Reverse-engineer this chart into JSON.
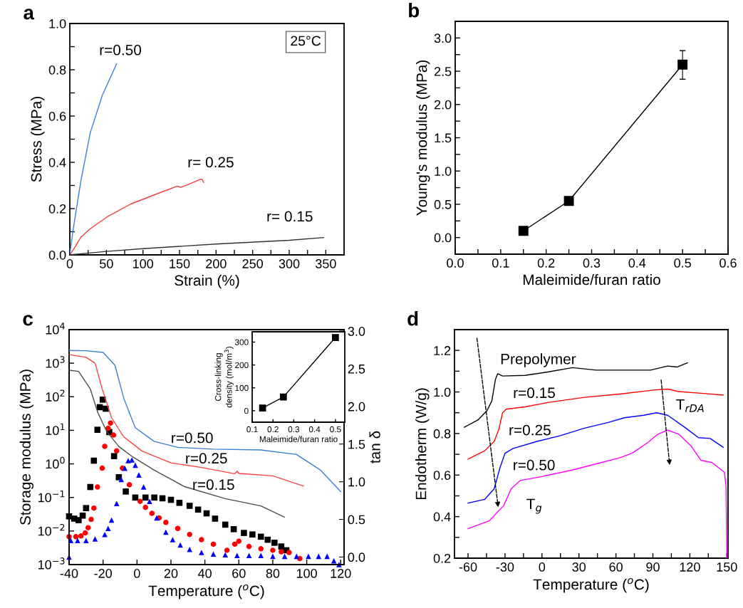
{
  "chart_data": [
    {
      "type": "line",
      "title": "a",
      "xlabel": "Strain (%)",
      "ylabel": "Stress (MPa)",
      "xlim": [
        0,
        375
      ],
      "ylim": [
        0,
        1.0
      ],
      "xticks": [
        0,
        {
          "value": 25,
          "label": null
        },
        50,
        {
          "value": 75,
          "label": null
        },
        100,
        {
          "value": 125,
          "label": null
        },
        150,
        {
          "value": 175,
          "label": null
        },
        200,
        {
          "value": 225,
          "label": null
        },
        250,
        {
          "value": 275,
          "label": null
        },
        300,
        {
          "value": 325,
          "label": null
        },
        350
      ],
      "yticks": [
        {
          "value": 0,
          "label": "0.0"
        },
        {
          "value": 0.1,
          "label": null
        },
        0.2,
        {
          "value": 0.3,
          "label": null
        },
        0.4,
        {
          "value": 0.5,
          "label": null
        },
        0.6,
        {
          "value": 0.7,
          "label": null
        },
        0.8,
        {
          "value": 0.9,
          "label": null
        },
        {
          "value": 1.0,
          "label": "1.0"
        }
      ],
      "series": [
        {
          "color": "#3b82e0",
          "x": [
            0,
            2,
            5.5,
            15.3,
            28,
            44.5,
            64
          ],
          "values": [
            0,
            0.05,
            0.128,
            0.323,
            0.528,
            0.69,
            0.826
          ]
        },
        {
          "color": "#f03c3c",
          "x": [
            0,
            5.5,
            15.3,
            28,
            51,
            83.5,
            116,
            147,
            152,
            165,
            178,
            181,
            183
          ],
          "values": [
            0,
            0.026,
            0.077,
            0.113,
            0.164,
            0.22,
            0.26,
            0.297,
            0.292,
            0.308,
            0.326,
            0.326,
            0.313
          ]
        },
        {
          "color": "#333333",
          "x": [
            0,
            50,
            100,
            200,
            300,
            347
          ],
          "values": [
            0,
            0.015,
            0.027,
            0.047,
            0.063,
            0.075
          ]
        }
      ],
      "annotations": [
        "25°C",
        "r=0.50",
        "r= 0.25",
        "r= 0.15"
      ]
    },
    {
      "type": "line",
      "title": "b",
      "xlabel": "Maleimide/furan ratio",
      "ylabel": "Young's modulus (MPa)",
      "xlim": [
        0,
        0.6
      ],
      "ylim": [
        -0.25,
        3.25
      ],
      "marker": "square",
      "xticks": [
        {
          "value": 0,
          "label": "0.0"
        },
        {
          "value": 0.05,
          "label": null
        },
        0.1,
        {
          "value": 0.15,
          "label": null
        },
        0.2,
        {
          "value": 0.25,
          "label": null
        },
        0.3,
        {
          "value": 0.35,
          "label": null
        },
        0.4,
        {
          "value": 0.45,
          "label": null
        },
        0.5,
        {
          "value": 0.55,
          "label": null
        },
        0.6
      ],
      "yticks": [
        {
          "value": 0,
          "label": "0.0"
        },
        {
          "value": 0.25,
          "label": null
        },
        0.5,
        {
          "value": 0.75,
          "label": null
        },
        {
          "value": 1.0,
          "label": "1.0"
        },
        {
          "value": 1.25,
          "label": null
        },
        1.5,
        {
          "value": 1.75,
          "label": null
        },
        {
          "value": 2.0,
          "label": "2.0"
        },
        {
          "value": 2.25,
          "label": null
        },
        2.5,
        {
          "value": 2.75,
          "label": null
        },
        {
          "value": 3.0,
          "label": "3.0"
        }
      ],
      "series": [
        {
          "color": "#000000",
          "x": [
            0.15,
            0.25,
            0.5
          ],
          "values": [
            0.1,
            0.55,
            2.6
          ],
          "errors": [
            null,
            null,
            [
              2.38,
              2.81
            ]
          ]
        }
      ]
    },
    {
      "type": "line",
      "title": "c",
      "xlabel": "Temperature ($^{o}$C)",
      "ylabel": "Storage modulus (MPa)",
      "y2label": "tan δ",
      "log": "y",
      "xlim": [
        -40,
        122
      ],
      "ylim": [
        0.001,
        10000
      ],
      "y2lim": [
        -0.1,
        3.02
      ],
      "xticks": [
        -40,
        -20,
        0,
        20,
        40,
        60,
        80,
        100,
        120
      ],
      "yticks": [
        {
          "value": 0.001,
          "label": "10$^{−3}$"
        },
        {
          "value": 0.01,
          "label": "10$^{−2}$"
        },
        {
          "value": 0.1,
          "label": "10$^{−1}$"
        },
        {
          "value": 1,
          "label": "10$^{0}$"
        },
        {
          "value": 10,
          "label": "10$^{1}$"
        },
        {
          "value": 100,
          "label": "10$^{2}$"
        },
        {
          "value": 1000,
          "label": "10$^{3}$"
        },
        {
          "value": 10000,
          "label": "10$^{4}$"
        }
      ],
      "y2ticks": [
        {
          "value": 0,
          "label": "0.0"
        },
        0.5,
        {
          "value": 1.0,
          "label": "1.0"
        },
        1.5,
        {
          "value": 2.0,
          "label": "2.0"
        },
        2.5,
        {
          "value": 3.0,
          "label": "3.0"
        }
      ],
      "series": [
        {
          "color": "#3a7fd5",
          "x": [
            -40,
            -30,
            -20,
            -13,
            -7.7,
            -1,
            10,
            24,
            45,
            73,
            94,
            108,
            120
          ],
          "values": [
            2400,
            2350,
            2100,
            870,
            87,
            12,
            4.7,
            3.1,
            2.75,
            2.6,
            1.9,
            0.66,
            0.15
          ]
        },
        {
          "color": "#ff4040",
          "x": [
            -40,
            -30,
            -24.7,
            -20.5,
            -15,
            -8,
            3,
            20,
            38,
            57.5,
            59,
            60,
            80,
            98
          ],
          "values": [
            1800,
            1500,
            1000,
            170,
            24,
            6.5,
            2.4,
            1.07,
            0.78,
            0.51,
            0.6,
            0.52,
            0.44,
            0.22
          ]
        },
        {
          "color": "#4d4d4d",
          "x": [
            -40,
            -34.4,
            -27.5,
            -23,
            -17.7,
            -10.7,
            -2.4,
            10,
            28,
            52,
            73,
            86.8
          ],
          "values": [
            620,
            570,
            170,
            33,
            9,
            3.3,
            1.6,
            0.66,
            0.21,
            0.092,
            0.056,
            0.026
          ]
        },
        {
          "type": "scatter",
          "axis": "y2",
          "marker": "square",
          "color": "#000000",
          "x": [
            -40,
            -37,
            -34.4,
            -32,
            -30,
            -27.5,
            -25.4,
            -23.3,
            -21.9,
            -20.2,
            -18.4,
            -16.3,
            -13.5,
            -10.7,
            -6.6,
            -1,
            5,
            10.2,
            15,
            20,
            25,
            31,
            36,
            41,
            46,
            52,
            57,
            63,
            68,
            73,
            77,
            81,
            85,
            88
          ],
          "values": [
            0.54,
            0.51,
            0.49,
            0.55,
            0.65,
            0.93,
            1.28,
            1.69,
            1.99,
            2.09,
            1.97,
            1.66,
            1.34,
            1.06,
            0.87,
            0.79,
            0.79,
            0.79,
            0.78,
            0.76,
            0.72,
            0.68,
            0.63,
            0.58,
            0.51,
            0.43,
            0.37,
            0.32,
            0.3,
            0.27,
            0.23,
            0.19,
            0.14,
            0.09
          ]
        },
        {
          "type": "scatter",
          "axis": "y2",
          "marker": "circle",
          "color": "#ff0000",
          "x": [
            -40,
            -36,
            -33,
            -30.5,
            -28.8,
            -27,
            -25.4,
            -23.3,
            -20.5,
            -19,
            -17,
            -15.6,
            -13.8,
            -12,
            -8.6,
            -4.5,
            1.8,
            5,
            8.8,
            13,
            17,
            24,
            31,
            38,
            45,
            53,
            57.6,
            60,
            66,
            73,
            80,
            85,
            89.6,
            95.9
          ],
          "values": [
            0.27,
            0.27,
            0.28,
            0.32,
            0.39,
            0.5,
            0.65,
            0.93,
            1.18,
            1.47,
            1.71,
            1.78,
            1.62,
            1.41,
            1.18,
            0.96,
            0.74,
            0.66,
            0.58,
            0.52,
            0.46,
            0.38,
            0.3,
            0.23,
            0.17,
            0.09,
            0.17,
            0.21,
            0.14,
            0.11,
            0.09,
            0.07,
            0.06,
            -0.02
          ]
        },
        {
          "type": "scatter",
          "axis": "y2",
          "marker": "triangle",
          "color": "#0000ff",
          "x": [
            -40,
            -39,
            -35,
            -30,
            -24.7,
            -19,
            -17,
            -15,
            -12,
            -9.3,
            -7.2,
            -5.2,
            -3,
            -1,
            1.1,
            3.9,
            7.4,
            11.6,
            17,
            21,
            25.5,
            31,
            38,
            45,
            52,
            59,
            66,
            73,
            80,
            87,
            94,
            101,
            107,
            112,
            116,
            119
          ],
          "values": [
            0.0,
            0.22,
            0.22,
            0.22,
            0.24,
            0.3,
            0.38,
            0.49,
            0.71,
            1.03,
            1.18,
            1.28,
            1.29,
            1.22,
            1.09,
            0.93,
            0.74,
            0.52,
            0.33,
            0.23,
            0.16,
            0.1,
            0.06,
            0.04,
            0.03,
            0.02,
            0.02,
            0.02,
            0.01,
            0.01,
            0.01,
            0.01,
            0.01,
            0.01,
            -0.05,
            -0.1
          ]
        }
      ],
      "annotations": [
        "r=0.50",
        "r=0.25",
        "r=0.15"
      ]
    },
    {
      "type": "line",
      "xlabel": "Maleimide/furan ratio",
      "ylabel": "Cross-linking\ndensity (mol/m$^{3}$)",
      "marker": "square",
      "xlim": [
        0.1,
        0.545
      ],
      "ylim": [
        -50,
        345
      ],
      "xticks": [
        0.1,
        0.2,
        0.3,
        0.4,
        0.5
      ],
      "yticks": [
        0,
        100,
        200,
        300
      ],
      "series": [
        {
          "color": "#000000",
          "x": [
            0.15,
            0.25,
            0.5
          ],
          "values": [
            12,
            60,
            320
          ]
        }
      ]
    },
    {
      "type": "line",
      "title": "d",
      "xlabel": "Temperature ($^{o}$C)",
      "ylabel": "Endotherm (W/g)",
      "xlim": [
        -71,
        151
      ],
      "ylim": [
        0.2,
        1.3
      ],
      "xticks": [
        -60,
        {
          "value": -45,
          "label": null
        },
        -30,
        {
          "value": -15,
          "label": null
        },
        0,
        {
          "value": 15,
          "label": null
        },
        30,
        {
          "value": 45,
          "label": null
        },
        60,
        {
          "value": 75,
          "label": null
        },
        90,
        {
          "value": 105,
          "label": null
        },
        120,
        {
          "value": 135,
          "label": null
        },
        150
      ],
      "yticks": [
        0.2,
        {
          "value": 0.3,
          "label": null
        },
        0.4,
        {
          "value": 0.5,
          "label": null
        },
        0.6,
        {
          "value": 0.7,
          "label": null
        },
        0.8,
        {
          "value": 0.9,
          "label": null
        },
        {
          "value": 1.0,
          "label": "1.0"
        },
        {
          "value": 1.1,
          "label": null
        },
        1.2
      ],
      "series": [
        {
          "color": "#000000",
          "x": [
            -63,
            -52,
            -44.6,
            -40.7,
            -37.8,
            -35.9,
            -32,
            -13.8,
            5.5,
            24.8,
            44,
            63,
            88,
            102,
            109.6,
            118
          ],
          "values": [
            0.83,
            0.865,
            0.91,
            0.957,
            1.06,
            1.088,
            1.077,
            1.08,
            1.097,
            1.117,
            1.105,
            1.105,
            1.105,
            1.125,
            1.12,
            1.14
          ]
        },
        {
          "color": "#ff0000",
          "x": [
            -60,
            -46.5,
            -38.8,
            -35,
            -32,
            -29,
            -13.8,
            5.5,
            34.4,
            63,
            92,
            102,
            111,
            131,
            147
          ],
          "values": [
            0.677,
            0.717,
            0.762,
            0.82,
            0.9,
            0.917,
            0.928,
            0.95,
            0.974,
            0.99,
            1.01,
            1.014,
            1.002,
            0.993,
            0.985
          ]
        },
        {
          "color": "#0000ff",
          "x": [
            -60,
            -46.5,
            -38.8,
            -34,
            -30,
            -23.4,
            -4,
            15,
            34,
            53.7,
            67,
            82.6,
            93,
            102,
            117,
            127,
            136.5,
            147
          ],
          "values": [
            0.465,
            0.483,
            0.534,
            0.637,
            0.705,
            0.728,
            0.762,
            0.79,
            0.825,
            0.853,
            0.876,
            0.888,
            0.9,
            0.888,
            0.825,
            0.78,
            0.776,
            0.734
          ]
        },
        {
          "color": "#ff00ff",
          "x": [
            -60,
            -42.7,
            -31,
            -25,
            -17.6,
            0,
            25,
            44,
            63,
            73,
            86,
            94,
            102,
            111,
            121,
            129,
            138,
            148,
            149.4,
            150
          ],
          "values": [
            0.342,
            0.38,
            0.454,
            0.534,
            0.574,
            0.593,
            0.625,
            0.654,
            0.683,
            0.705,
            0.757,
            0.797,
            0.816,
            0.797,
            0.74,
            0.671,
            0.66,
            0.614,
            0.545,
            0.2
          ]
        }
      ],
      "annotations": [
        "Prepolymer",
        "r=0.15",
        "r=0.25",
        "r=0.50",
        "T$_{g}$",
        "T$_{rDA}$"
      ]
    }
  ]
}
